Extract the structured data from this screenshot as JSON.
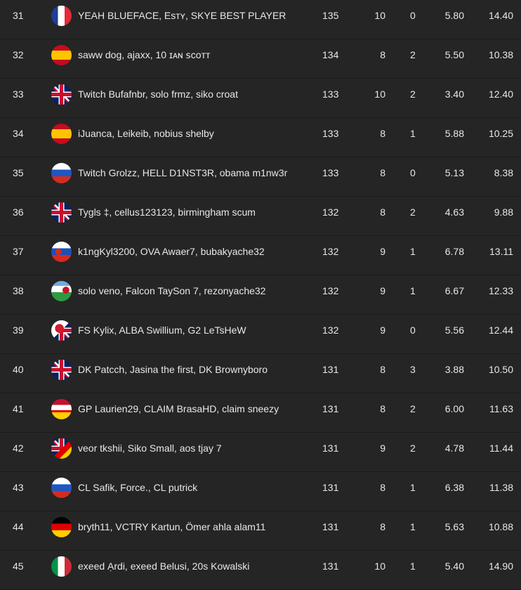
{
  "rows": [
    {
      "rank": "31",
      "flag": "france-flag",
      "players": "YEAH BLUEFACE, Esᴛʏ, SKYE BEST PLAYER",
      "points": "135",
      "kills": "10",
      "place": "0",
      "avg": "5.80",
      "ratio": "14.40"
    },
    {
      "rank": "32",
      "flag": "spain-flag",
      "players": "saww dog, ajaxx, 10 ɪᴀɴ ꜱᴄᴏᴛᴛ",
      "points": "134",
      "kills": "8",
      "place": "2",
      "avg": "5.50",
      "ratio": "10.38"
    },
    {
      "rank": "33",
      "flag": "uk-flag",
      "players": "Twitch Bufafnbr, solo frmz, siko croat",
      "points": "133",
      "kills": "10",
      "place": "2",
      "avg": "3.40",
      "ratio": "12.40"
    },
    {
      "rank": "34",
      "flag": "spain-flag",
      "players": "iJuanca, Leikeib, nobius shelby",
      "points": "133",
      "kills": "8",
      "place": "1",
      "avg": "5.88",
      "ratio": "10.25"
    },
    {
      "rank": "35",
      "flag": "russia-flag",
      "players": "Twitch Grolzz, HELL D1NST3R, obama m1nw3r",
      "points": "133",
      "kills": "8",
      "place": "0",
      "avg": "5.13",
      "ratio": "8.38"
    },
    {
      "rank": "36",
      "flag": "uk-flag",
      "players": "Tygls ‡, cellus123123, birmingham scum",
      "points": "132",
      "kills": "8",
      "place": "2",
      "avg": "4.63",
      "ratio": "9.88"
    },
    {
      "rank": "37",
      "flag": "slovakia-flag",
      "players": "k1ngKyl3200, OVA Awaer7, bubakyache32",
      "points": "132",
      "kills": "9",
      "place": "1",
      "avg": "6.78",
      "ratio": "13.11"
    },
    {
      "rank": "38",
      "flag": "argentina-wales-flag",
      "players": "solo veno, Falcon TaySon 7, rezonyache32",
      "points": "132",
      "kills": "9",
      "place": "1",
      "avg": "6.67",
      "ratio": "12.33"
    },
    {
      "rank": "39",
      "flag": "japan-uk-flag",
      "players": "FS Kylix, ALBA Swillium, G2 LeTsHeW",
      "points": "132",
      "kills": "9",
      "place": "0",
      "avg": "5.56",
      "ratio": "12.44"
    },
    {
      "rank": "40",
      "flag": "uk-flag",
      "players": "DK Patcch, Jasina the first, DK Brownyboro",
      "points": "131",
      "kills": "8",
      "place": "3",
      "avg": "3.88",
      "ratio": "10.50"
    },
    {
      "rank": "41",
      "flag": "austria-germany-flag",
      "players": "GP Laurien29, CLAIM BrasaHD, claim sneezy",
      "points": "131",
      "kills": "8",
      "place": "2",
      "avg": "6.00",
      "ratio": "11.63"
    },
    {
      "rank": "42",
      "flag": "uk-germany-flag",
      "players": "veor tkshii, Siko Small, aos tjay 7",
      "points": "131",
      "kills": "9",
      "place": "2",
      "avg": "4.78",
      "ratio": "11.44"
    },
    {
      "rank": "43",
      "flag": "russia-flag",
      "players": "CL Safik, Force., CL putrick",
      "points": "131",
      "kills": "8",
      "place": "1",
      "avg": "6.38",
      "ratio": "11.38"
    },
    {
      "rank": "44",
      "flag": "germany-flag",
      "players": "bryth11, VCTRY Kartun, Ömer ahla alam11",
      "points": "131",
      "kills": "8",
      "place": "1",
      "avg": "5.63",
      "ratio": "10.88"
    },
    {
      "rank": "45",
      "flag": "italy-flag",
      "players": "exeed Ạrdi, exeed Belusi, 20s Kowalski",
      "points": "131",
      "kills": "10",
      "place": "1",
      "avg": "5.40",
      "ratio": "14.90"
    }
  ]
}
